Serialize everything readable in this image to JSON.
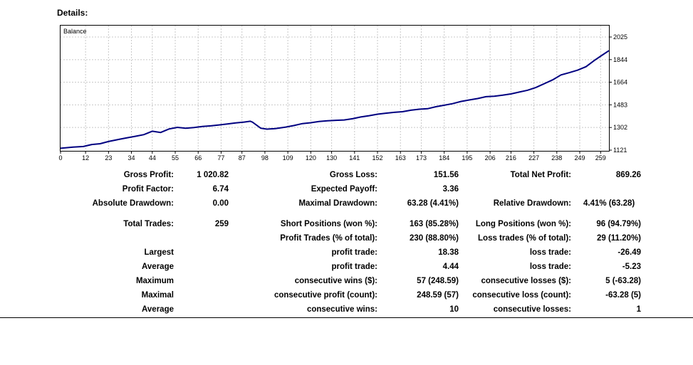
{
  "header": {
    "title": "Details:"
  },
  "chart_data": {
    "type": "line",
    "legend": "Balance",
    "x_ticks": [
      "0",
      "12",
      "23",
      "34",
      "44",
      "55",
      "66",
      "77",
      "87",
      "98",
      "109",
      "120",
      "130",
      "141",
      "152",
      "163",
      "173",
      "184",
      "195",
      "206",
      "216",
      "227",
      "238",
      "249",
      "259"
    ],
    "y_ticks": [
      "1121",
      "1302",
      "1483",
      "1664",
      "1844",
      "2025"
    ],
    "ylim": [
      1121,
      2025
    ],
    "xlim": [
      0,
      263
    ],
    "series": [
      {
        "values": [
          [
            0,
            1136
          ],
          [
            6,
            1145
          ],
          [
            11,
            1150
          ],
          [
            15,
            1166
          ],
          [
            19,
            1172
          ],
          [
            23,
            1190
          ],
          [
            28,
            1207
          ],
          [
            32,
            1220
          ],
          [
            36,
            1232
          ],
          [
            40,
            1245
          ],
          [
            44,
            1272
          ],
          [
            48,
            1262
          ],
          [
            52,
            1290
          ],
          [
            56,
            1303
          ],
          [
            60,
            1296
          ],
          [
            64,
            1302
          ],
          [
            68,
            1310
          ],
          [
            72,
            1315
          ],
          [
            76,
            1322
          ],
          [
            80,
            1330
          ],
          [
            84,
            1338
          ],
          [
            88,
            1345
          ],
          [
            91,
            1352
          ],
          [
            92,
            1345
          ],
          [
            96,
            1296
          ],
          [
            99,
            1289
          ],
          [
            103,
            1293
          ],
          [
            108,
            1305
          ],
          [
            112,
            1318
          ],
          [
            116,
            1333
          ],
          [
            120,
            1340
          ],
          [
            124,
            1350
          ],
          [
            128,
            1356
          ],
          [
            132,
            1359
          ],
          [
            136,
            1362
          ],
          [
            140,
            1372
          ],
          [
            144,
            1386
          ],
          [
            148,
            1396
          ],
          [
            152,
            1408
          ],
          [
            156,
            1416
          ],
          [
            160,
            1423
          ],
          [
            164,
            1428
          ],
          [
            168,
            1440
          ],
          [
            172,
            1448
          ],
          [
            176,
            1452
          ],
          [
            180,
            1468
          ],
          [
            184,
            1480
          ],
          [
            188,
            1492
          ],
          [
            192,
            1510
          ],
          [
            196,
            1522
          ],
          [
            200,
            1533
          ],
          [
            204,
            1548
          ],
          [
            208,
            1552
          ],
          [
            212,
            1560
          ],
          [
            216,
            1570
          ],
          [
            220,
            1585
          ],
          [
            224,
            1600
          ],
          [
            228,
            1622
          ],
          [
            232,
            1652
          ],
          [
            236,
            1683
          ],
          [
            240,
            1722
          ],
          [
            244,
            1740
          ],
          [
            248,
            1760
          ],
          [
            252,
            1788
          ],
          [
            256,
            1838
          ],
          [
            260,
            1883
          ],
          [
            263,
            1916
          ]
        ]
      }
    ]
  },
  "stats": {
    "gross_profit_label": "Gross Profit:",
    "gross_profit": "1 020.82",
    "gross_loss_label": "Gross Loss:",
    "gross_loss": "151.56",
    "total_net_profit_label": "Total Net Profit:",
    "total_net_profit": "869.26",
    "profit_factor_label": "Profit Factor:",
    "profit_factor": "6.74",
    "expected_payoff_label": "Expected Payoff:",
    "expected_payoff": "3.36",
    "absolute_drawdown_label": "Absolute Drawdown:",
    "absolute_drawdown": "0.00",
    "maximal_drawdown_label": "Maximal Drawdown:",
    "maximal_drawdown": "63.28 (4.41%)",
    "relative_drawdown_label": "Relative Drawdown:",
    "relative_drawdown": "4.41% (63.28)",
    "total_trades_label": "Total Trades:",
    "total_trades": "259",
    "short_positions_label": "Short Positions (won %):",
    "short_positions": "163 (85.28%)",
    "long_positions_label": "Long Positions (won %):",
    "long_positions": "96 (94.79%)",
    "profit_trades_label": "Profit Trades (% of total):",
    "profit_trades": "230 (88.80%)",
    "loss_trades_label": "Loss trades (% of total):",
    "loss_trades": "29 (11.20%)",
    "largest_label": "Largest",
    "largest_profit_label": "profit trade:",
    "largest_profit": "18.38",
    "largest_loss_label": "loss trade:",
    "largest_loss": "-26.49",
    "average_label": "Average",
    "average_profit_label": "profit trade:",
    "average_profit": "4.44",
    "average_loss_label": "loss trade:",
    "average_loss": "-5.23",
    "maximum_label": "Maximum",
    "max_consec_wins_label": "consecutive wins ($):",
    "max_consec_wins": "57 (248.59)",
    "max_consec_losses_label": "consecutive losses ($):",
    "max_consec_losses": "5 (-63.28)",
    "maximal_label": "Maximal",
    "maximal_consec_profit_label": "consecutive profit (count):",
    "maximal_consec_profit": "248.59 (57)",
    "maximal_consec_loss_label": "consecutive loss (count):",
    "maximal_consec_loss": "-63.28 (5)",
    "average2_label": "Average",
    "avg_consec_wins_label": "consecutive wins:",
    "avg_consec_wins": "10",
    "avg_consec_losses_label": "consecutive losses:",
    "avg_consec_losses": "1"
  }
}
